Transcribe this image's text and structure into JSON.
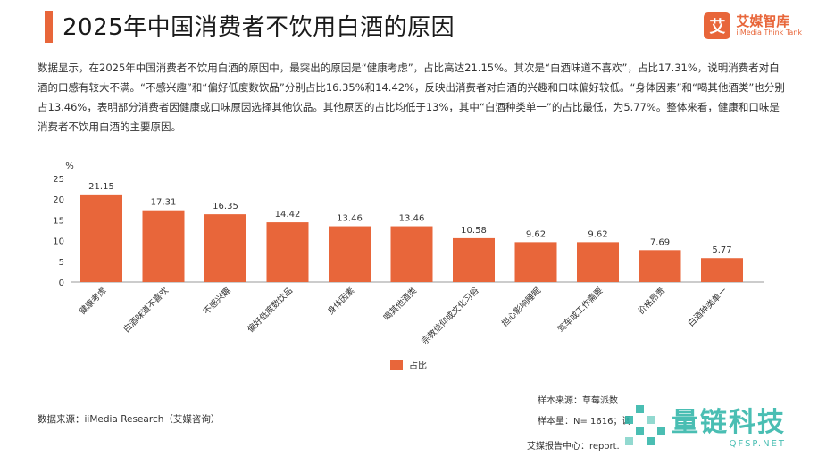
{
  "header": {
    "title": "2025年中国消费者不饮用白酒的原因",
    "logo_mark": "艾",
    "logo_cn": "艾媒智库",
    "logo_en": "iiMedia Think Tank"
  },
  "description": "数据显示，在2025年中国消费者不饮用白酒的原因中，最突出的原因是“健康考虑”，占比高达21.15%。其次是“白酒味道不喜欢”，占比17.31%，说明消费者对白酒的口感有较大不满。“不感兴趣”和“偏好低度数饮品”分别占比16.35%和14.42%，反映出消费者对白酒的兴趣和口味偏好较低。“身体因素”和“喝其他酒类”也分别占13.46%，表明部分消费者因健康或口味原因选择其他饮品。其他原因的占比均低于13%，其中“白酒种类单一”的占比最低，为5.77%。整体来看，健康和口味是消费者不饮用白酒的主要原因。",
  "chart_data": {
    "type": "bar",
    "unit_label": "%",
    "categories": [
      "健康考虑",
      "白酒味道不喜欢",
      "不感兴趣",
      "偏好低度数饮品",
      "身体因素",
      "喝其他酒类",
      "宗教信仰或文化习俗",
      "担心影响睡眠",
      "驾车或工作需要",
      "价格昂贵",
      "白酒种类单一"
    ],
    "series": [
      {
        "name": "占比",
        "values": [
          21.15,
          17.31,
          16.35,
          14.42,
          13.46,
          13.46,
          10.58,
          9.62,
          9.62,
          7.69,
          5.77
        ]
      }
    ],
    "value_labels": [
      "21.15",
      "17.31",
      "16.35",
      "14.42",
      "13.46",
      "13.46",
      "10.58",
      "9.62",
      "9.62",
      "7.69",
      "5.77"
    ],
    "yticks": [
      0,
      5,
      10,
      15,
      20,
      25
    ],
    "ytick_labels": [
      "0",
      "5",
      "10",
      "15",
      "20",
      "25"
    ],
    "ylim": [
      0,
      25
    ],
    "grid": false,
    "legend_position": "bottom-center",
    "bar_color": "#e8663a"
  },
  "footer": {
    "source": "数据来源：iiMedia Research（艾媒咨询）",
    "sample_source": "样本来源：草莓派数",
    "sample_size": "样本量：N= 1616；调",
    "report_center": "艾媒报告中心：report."
  },
  "watermark": {
    "cn": "量链科技",
    "en": "QFSP.NET"
  }
}
